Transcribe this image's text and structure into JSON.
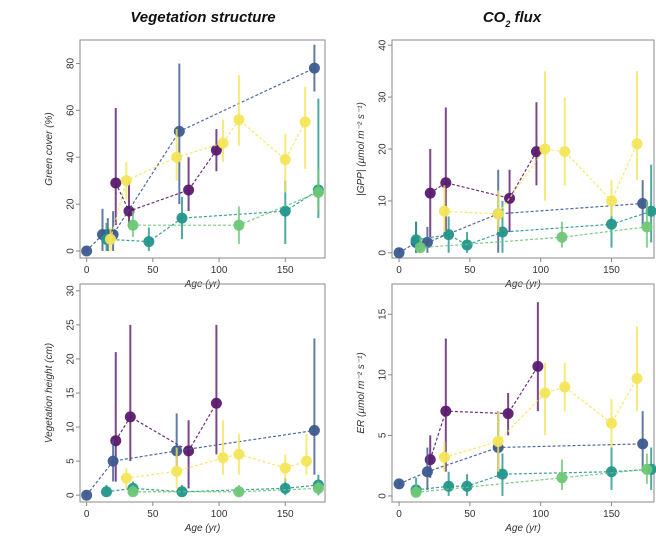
{
  "column_titles": [
    "Vegetation structure",
    "CO",
    "2",
    " flux"
  ],
  "shared_xlabel_prefix": "Age",
  "shared_xlabel_unit": "(yr)",
  "colors": {
    "purple": "#5b1a6e",
    "blue": "#3d5a8f",
    "teal": "#23968c",
    "green": "#6ec777",
    "yellow": "#f4e55a"
  },
  "chart_data": [
    {
      "type": "scatter",
      "panel": "top-left",
      "ylabel": "Green cover (%)",
      "xlim": [
        -5,
        180
      ],
      "ylim": [
        -3,
        90
      ],
      "xticks": [
        0,
        50,
        100,
        150
      ],
      "yticks": [
        0,
        20,
        40,
        60,
        80
      ],
      "series": [
        {
          "color_key": "purple",
          "points": [
            [
              22,
              29,
              11,
              61
            ],
            [
              32,
              17,
              10,
              30
            ],
            [
              77,
              26,
              17,
              40
            ],
            [
              98,
              43,
              34,
              52
            ]
          ]
        },
        {
          "color_key": "blue",
          "points": [
            [
              0,
              0,
              0,
              2
            ],
            [
              12,
              7,
              0,
              18
            ],
            [
              16,
              7,
              0,
              14
            ],
            [
              20,
              7,
              0,
              17
            ],
            [
              70,
              51,
              20,
              80
            ],
            [
              172,
              78,
              68,
              88
            ]
          ]
        },
        {
          "color_key": "teal",
          "points": [
            [
              15,
              5,
              0,
              12
            ],
            [
              47,
              4,
              0,
              10
            ],
            [
              72,
              14,
              5,
              23
            ],
            [
              150,
              17,
              3,
              30
            ],
            [
              175,
              26,
              14,
              65
            ]
          ]
        },
        {
          "color_key": "green",
          "points": [
            [
              35,
              11,
              6,
              17
            ],
            [
              115,
              11,
              3,
              19
            ],
            [
              175,
              25,
              17,
              35
            ]
          ]
        },
        {
          "color_key": "yellow",
          "points": [
            [
              18,
              5,
              0,
              10
            ],
            [
              30,
              30,
              22,
              38
            ],
            [
              68,
              40,
              30,
              52
            ],
            [
              103,
              46,
              38,
              56
            ],
            [
              115,
              56,
              45,
              75
            ],
            [
              150,
              39,
              25,
              50
            ],
            [
              165,
              55,
              35,
              70
            ]
          ]
        }
      ]
    },
    {
      "type": "scatter",
      "panel": "top-right",
      "ylabel": "|GPP| (µmol m⁻² s⁻¹)",
      "xlim": [
        -5,
        180
      ],
      "ylim": [
        -1,
        41
      ],
      "xticks": [
        0,
        50,
        100,
        150
      ],
      "yticks": [
        0,
        10,
        20,
        30,
        40
      ],
      "series": [
        {
          "color_key": "purple",
          "points": [
            [
              22,
              11.5,
              3,
              20
            ],
            [
              33,
              13.5,
              3,
              28
            ],
            [
              78,
              10.5,
              4,
              16
            ],
            [
              97,
              19.5,
              13,
              29
            ]
          ]
        },
        {
          "color_key": "blue",
          "points": [
            [
              0,
              0,
              0,
              1
            ],
            [
              12,
              2,
              0,
              6
            ],
            [
              20,
              2,
              0,
              5
            ],
            [
              70,
              7.5,
              0,
              16
            ],
            [
              172,
              9.5,
              5,
              14
            ]
          ]
        },
        {
          "color_key": "teal",
          "points": [
            [
              12,
              2.5,
              0,
              6
            ],
            [
              35,
              3.5,
              0,
              7
            ],
            [
              48,
              1.5,
              0,
              4
            ],
            [
              73,
              4,
              0,
              10
            ],
            [
              150,
              5.5,
              1,
              11
            ],
            [
              178,
              8,
              2,
              17
            ]
          ]
        },
        {
          "color_key": "green",
          "points": [
            [
              15,
              1,
              0,
              3
            ],
            [
              115,
              3,
              1,
              6
            ],
            [
              175,
              5,
              1,
              10
            ]
          ]
        },
        {
          "color_key": "yellow",
          "points": [
            [
              32,
              8,
              4,
              13
            ],
            [
              70,
              7.5,
              4,
              12
            ],
            [
              103,
              20,
              10,
              35
            ],
            [
              117,
              19.5,
              13,
              30
            ],
            [
              150,
              10,
              7,
              14
            ],
            [
              168,
              21,
              14,
              35
            ]
          ]
        }
      ]
    },
    {
      "type": "scatter",
      "panel": "bottom-left",
      "ylabel": "Vegetation height (cm)",
      "xlim": [
        -5,
        180
      ],
      "ylim": [
        -1,
        31
      ],
      "xticks": [
        0,
        50,
        100,
        150
      ],
      "yticks": [
        0,
        5,
        10,
        15,
        20,
        25,
        30
      ],
      "series": [
        {
          "color_key": "purple",
          "points": [
            [
              22,
              8,
              2,
              21
            ],
            [
              33,
              11.5,
              5,
              25
            ],
            [
              77,
              6.5,
              1,
              11
            ],
            [
              98,
              13.5,
              6,
              25
            ]
          ]
        },
        {
          "color_key": "blue",
          "points": [
            [
              0,
              0,
              0,
              0.5
            ],
            [
              20,
              5,
              2,
              8
            ],
            [
              68,
              6.5,
              3,
              12
            ],
            [
              172,
              9.5,
              3,
              23
            ]
          ]
        },
        {
          "color_key": "teal",
          "points": [
            [
              15,
              0.5,
              0,
              1.5
            ],
            [
              35,
              1,
              0,
              2
            ],
            [
              72,
              0.5,
              0,
              1.5
            ],
            [
              150,
              1,
              0,
              2.5
            ],
            [
              175,
              1.5,
              0,
              3
            ]
          ]
        },
        {
          "color_key": "green",
          "points": [
            [
              35,
              0.5,
              0,
              1.5
            ],
            [
              115,
              0.5,
              0,
              1.5
            ],
            [
              175,
              1,
              0,
              2
            ]
          ]
        },
        {
          "color_key": "yellow",
          "points": [
            [
              30,
              2.5,
              1,
              4
            ],
            [
              68,
              3.5,
              1,
              7
            ],
            [
              103,
              5.5,
              3,
              11
            ],
            [
              115,
              6,
              3,
              9
            ],
            [
              150,
              4,
              2,
              6
            ],
            [
              166,
              5,
              3,
              9
            ]
          ]
        }
      ]
    },
    {
      "type": "scatter",
      "panel": "bottom-right",
      "ylabel": "ER (µmol m⁻² s⁻¹)",
      "xlim": [
        -5,
        180
      ],
      "ylim": [
        -0.5,
        17.5
      ],
      "xticks": [
        0,
        50,
        100,
        150
      ],
      "yticks": [
        0,
        5,
        10,
        15
      ],
      "series": [
        {
          "color_key": "purple",
          "points": [
            [
              22,
              3,
              1.5,
              5
            ],
            [
              33,
              7,
              2,
              13
            ],
            [
              77,
              6.8,
              5,
              8.5
            ],
            [
              98,
              10.7,
              7,
              16
            ]
          ]
        },
        {
          "color_key": "blue",
          "points": [
            [
              0,
              1,
              0.8,
              1.2
            ],
            [
              20,
              2,
              0.5,
              4
            ],
            [
              70,
              4,
              1.5,
              7
            ],
            [
              172,
              4.3,
              2,
              7
            ]
          ]
        },
        {
          "color_key": "teal",
          "points": [
            [
              12,
              0.5,
              0,
              1.5
            ],
            [
              35,
              0.8,
              0,
              2
            ],
            [
              48,
              0.8,
              0,
              1.8
            ],
            [
              73,
              1.8,
              0,
              3.5
            ],
            [
              150,
              2,
              0.5,
              4
            ],
            [
              178,
              2.2,
              0.5,
              4
            ]
          ]
        },
        {
          "color_key": "green",
          "points": [
            [
              12,
              0.3,
              0,
              1
            ],
            [
              115,
              1.5,
              0.5,
              3
            ],
            [
              175,
              2.2,
              1,
              3.5
            ]
          ]
        },
        {
          "color_key": "yellow",
          "points": [
            [
              32,
              3.2,
              2,
              4.5
            ],
            [
              70,
              4.5,
              2,
              7
            ],
            [
              103,
              8.5,
              5,
              11
            ],
            [
              117,
              9,
              7,
              11
            ],
            [
              150,
              6,
              4,
              8
            ],
            [
              168,
              9.7,
              7,
              14
            ]
          ]
        }
      ]
    }
  ]
}
